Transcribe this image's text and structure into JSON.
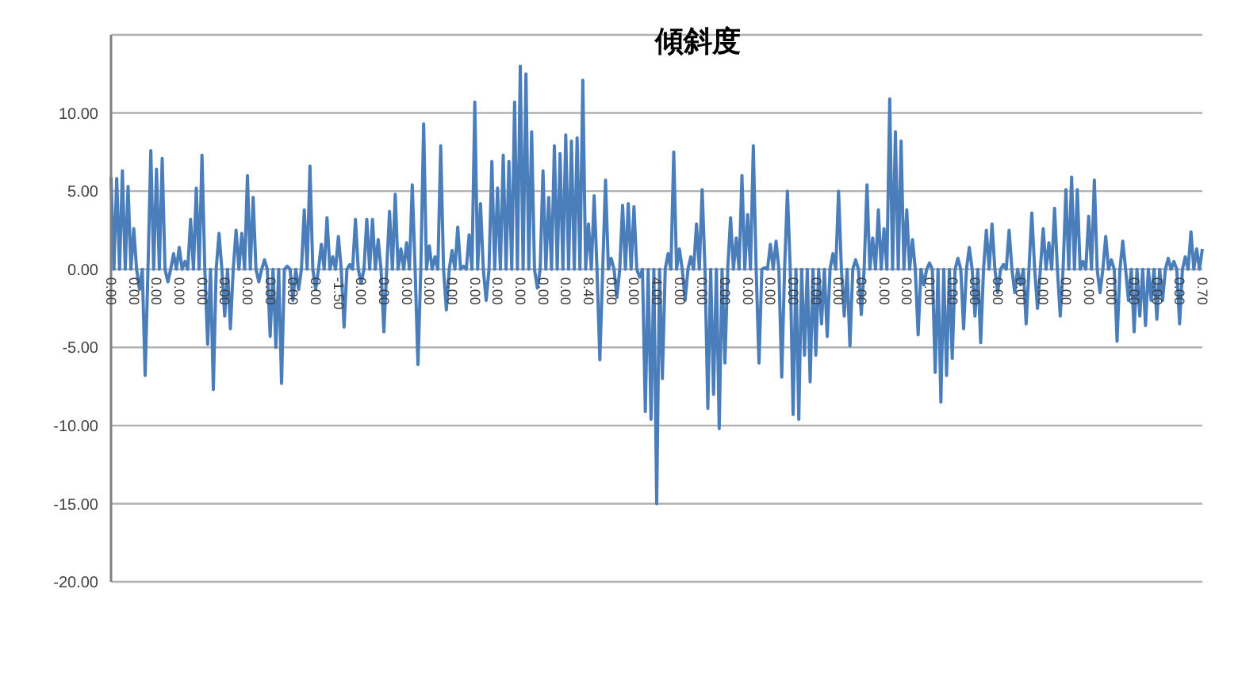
{
  "chart_data": {
    "type": "line",
    "title": "傾斜度",
    "categories": [
      "0.00",
      null,
      null,
      null,
      null,
      null,
      null,
      null,
      "0.00",
      null,
      null,
      null,
      null,
      null,
      null,
      null,
      "0.00",
      null,
      null,
      null,
      null,
      null,
      null,
      null,
      "0.00",
      null,
      null,
      null,
      null,
      null,
      null,
      null,
      "0.00",
      null,
      null,
      null,
      null,
      null,
      null,
      null,
      "0.00",
      null,
      null,
      null,
      null,
      null,
      null,
      null,
      "0.00",
      null,
      null,
      null,
      null,
      null,
      null,
      null,
      "0.00",
      null,
      null,
      null,
      null,
      null,
      null,
      null,
      "0.00",
      null,
      null,
      null,
      null,
      null,
      null,
      null,
      "0.00",
      null,
      null,
      null,
      null,
      null,
      null,
      null,
      "-1.50",
      null,
      null,
      null,
      null,
      null,
      null,
      null,
      "0.00",
      null,
      null,
      null,
      null,
      null,
      null,
      null,
      "0.00",
      null,
      null,
      null,
      null,
      null,
      null,
      null,
      "0.00",
      null,
      null,
      null,
      null,
      null,
      null,
      null,
      "0.00",
      null,
      null,
      null,
      null,
      null,
      null,
      null,
      "0.00",
      null,
      null,
      null,
      null,
      null,
      null,
      null,
      "0.00",
      null,
      null,
      null,
      null,
      null,
      null,
      null,
      "0.00",
      null,
      null,
      null,
      null,
      null,
      null,
      null,
      "0.00",
      null,
      null,
      null,
      null,
      null,
      null,
      null,
      "0.00",
      null,
      null,
      null,
      null,
      null,
      null,
      null,
      "0.00",
      null,
      null,
      null,
      null,
      null,
      null,
      null,
      "8.40",
      null,
      null,
      null,
      null,
      null,
      null,
      null,
      "0.00",
      null,
      null,
      null,
      null,
      null,
      null,
      null,
      "0.00",
      null,
      null,
      null,
      null,
      null,
      null,
      null,
      "4.00",
      null,
      null,
      null,
      null,
      null,
      null,
      null,
      "0.00",
      null,
      null,
      null,
      null,
      null,
      null,
      null,
      "0.00",
      null,
      null,
      null,
      null,
      null,
      null,
      null,
      "0.00",
      null,
      null,
      null,
      null,
      null,
      null,
      null,
      "0.00",
      null,
      null,
      null,
      null,
      null,
      null,
      null,
      "0.00",
      null,
      null,
      null,
      null,
      null,
      null,
      null,
      "0.00",
      null,
      null,
      null,
      null,
      null,
      null,
      null,
      "0.00",
      null,
      null,
      null,
      null,
      null,
      null,
      null,
      "0.00",
      null,
      null,
      null,
      null,
      null,
      null,
      null,
      "0.00",
      null,
      null,
      null,
      null,
      null,
      null,
      null,
      "0.00",
      null,
      null,
      null,
      null,
      null,
      null,
      null,
      "0.00",
      null,
      null,
      null,
      null,
      null,
      null,
      null,
      "0.00",
      null,
      null,
      null,
      null,
      null,
      null,
      null,
      "0.00",
      null,
      null,
      null,
      null,
      null,
      null,
      null,
      "0.00",
      null,
      null,
      null,
      null,
      null,
      null,
      null,
      "0.00",
      null,
      null,
      null,
      null,
      null,
      null,
      null,
      "0.00",
      null,
      null,
      null,
      null,
      null,
      null,
      null,
      "0.00",
      null,
      null,
      null,
      null,
      null,
      null,
      null,
      "0.00",
      null,
      null,
      null,
      null,
      null,
      null,
      null,
      "0.00",
      null,
      null,
      null,
      null,
      null,
      null,
      null,
      "0.00",
      null,
      null,
      null,
      null,
      null,
      null,
      null,
      "0.00",
      null,
      null,
      null,
      null,
      null,
      null,
      null,
      "0.00",
      null,
      null,
      null,
      null,
      null,
      null,
      null,
      "0.00",
      null,
      null,
      null,
      null,
      null,
      null,
      null,
      "0.70"
    ],
    "values": [
      5.9,
      0,
      5.8,
      0,
      6.3,
      0,
      5.3,
      0,
      2.6,
      0,
      -1.3,
      0,
      -6.8,
      0,
      7.6,
      0,
      6.4,
      0,
      7.1,
      0,
      -0.8,
      0,
      1.0,
      0,
      1.4,
      0,
      0.5,
      0,
      3.2,
      0,
      5.2,
      0,
      7.3,
      0,
      -4.8,
      0,
      -7.7,
      0,
      2.3,
      0,
      -3,
      0,
      -3.8,
      0,
      2.5,
      0,
      2.3,
      0,
      6.0,
      0,
      4.6,
      0,
      -0.8,
      0,
      0.6,
      0,
      -4.3,
      0,
      -5,
      0,
      -7.3,
      0,
      0.2,
      0,
      -2,
      0,
      -1.3,
      0,
      3.8,
      0,
      6.6,
      0,
      -1.3,
      0,
      1.6,
      0,
      3.3,
      0,
      0.8,
      0,
      2.1,
      0,
      -3.7,
      0,
      0.3,
      0,
      3.2,
      0,
      -0.9,
      0,
      3.2,
      0,
      3.2,
      0,
      1.9,
      0,
      -4.0,
      0,
      3.7,
      0,
      4.8,
      0,
      1.3,
      0,
      1.7,
      0,
      5.4,
      0,
      -6.1,
      0,
      9.3,
      0,
      1.5,
      0,
      0.8,
      0,
      7.9,
      0,
      -2.6,
      0,
      1.2,
      0,
      2.7,
      0,
      0.2,
      0,
      2.2,
      0,
      10.7,
      0,
      4.2,
      0,
      -2.0,
      0,
      6.9,
      0,
      5.2,
      0,
      7.3,
      0,
      6.9,
      0,
      10.7,
      0,
      13.0,
      0,
      12.5,
      0,
      8.8,
      0,
      -1.2,
      0,
      6.3,
      0,
      4.6,
      0,
      7.9,
      0,
      7.4,
      0,
      8.6,
      0,
      8.2,
      0,
      8.4,
      0,
      12.1,
      0,
      2.9,
      0,
      4.7,
      0,
      -5.8,
      0,
      5.7,
      0,
      0.7,
      0,
      -1.8,
      0,
      4.1,
      0,
      4.2,
      0,
      4.0,
      0,
      -0.5,
      0,
      -9.1,
      0,
      -9.6,
      0,
      -15.0,
      0,
      -7,
      0,
      1.0,
      0,
      7.5,
      0,
      1.3,
      0,
      -2,
      0,
      0.8,
      0,
      2.9,
      0,
      5.1,
      0,
      -8.9,
      0,
      -8,
      0,
      -10.2,
      0,
      -6,
      0,
      3.3,
      0,
      2.0,
      0,
      6.0,
      0,
      3.5,
      0,
      7.9,
      0,
      -6.0,
      0,
      0.1,
      0,
      1.6,
      0,
      1.8,
      0,
      -6.9,
      0,
      5.0,
      0,
      -9.3,
      0,
      -9.6,
      0,
      -5.5,
      0,
      -7.2,
      0,
      -5.5,
      0,
      -3.5,
      0,
      -4.3,
      0,
      1.0,
      0,
      5.0,
      0,
      -3,
      0,
      -4.9,
      0,
      0.6,
      0,
      -2.9,
      0,
      5.4,
      0,
      2.0,
      0,
      3.8,
      0,
      2.6,
      0,
      10.9,
      0,
      8.8,
      0,
      8.2,
      0,
      3.8,
      0,
      1.9,
      0,
      -4.2,
      0,
      -1,
      0,
      0.4,
      0,
      -6.6,
      0,
      -8.5,
      0,
      -6.8,
      0,
      -5.7,
      0,
      0.7,
      0,
      -3.8,
      0,
      1.4,
      0,
      -3,
      0,
      -4.7,
      0,
      2.5,
      0,
      2.9,
      0,
      -1.5,
      0,
      0.3,
      0,
      2.5,
      0,
      -1.5,
      0,
      -1.0,
      0,
      -3.5,
      0,
      3.6,
      0,
      -2.5,
      0,
      2.6,
      0,
      1.7,
      0,
      3.9,
      0,
      -3.0,
      0,
      5.1,
      0,
      5.9,
      0,
      5.1,
      0,
      0.5,
      0,
      3.4,
      0,
      5.7,
      0,
      -1.5,
      0,
      2.1,
      0,
      0.6,
      0,
      -4.6,
      0,
      1.8,
      0,
      -2.0,
      0,
      -4.0,
      0,
      -3,
      0,
      -3.6,
      0,
      -2.0,
      0,
      -3.2,
      0,
      -2.0,
      0,
      0.7,
      0,
      0.5,
      0,
      -3.5,
      0,
      0.8,
      0,
      2.4,
      0,
      1.3,
      0,
      1.3
    ],
    "color": "#4a7ebb",
    "ylim": [
      -20,
      15
    ],
    "yticks": [
      {
        "value": -20,
        "label": "-20.00"
      },
      {
        "value": -15,
        "label": "-15.00"
      },
      {
        "value": -10,
        "label": "-10.00"
      },
      {
        "value": -5,
        "label": "-5.00"
      },
      {
        "value": 0,
        "label": "0.00"
      },
      {
        "value": 5,
        "label": "5.00"
      },
      {
        "value": 10,
        "label": "10.00"
      }
    ],
    "grid": "y",
    "marker": "none",
    "line_style": "solid"
  }
}
